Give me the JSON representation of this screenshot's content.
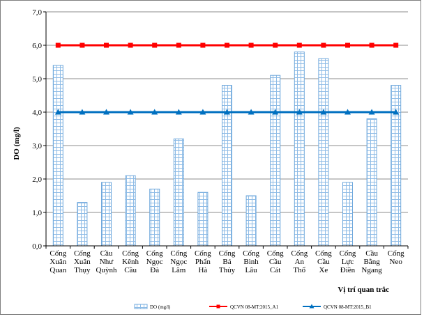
{
  "chart_data": {
    "type": "bar",
    "ylabel": "DO (mg/l)",
    "xlabel": "Vị trí quan trắc",
    "ylim": [
      0,
      7
    ],
    "yticks": [
      "0,0",
      "1,0",
      "2,0",
      "3,0",
      "4,0",
      "5,0",
      "6,0",
      "7,0"
    ],
    "grid": true,
    "legend_position": "bottom",
    "categories": [
      [
        "Cống",
        "Xuân",
        "Quan"
      ],
      [
        "Cống",
        "Xuân",
        "Thụy"
      ],
      [
        "Cầu",
        "Như",
        "Quỳnh"
      ],
      [
        "Cống",
        "Kênh",
        "Cầu"
      ],
      [
        "Cống",
        "Ngọc",
        "Đà"
      ],
      [
        "Cống",
        "Ngọc",
        "Lâm"
      ],
      [
        "Cống",
        "Phấn",
        "Hà"
      ],
      [
        "Cống",
        "Bá",
        "Thủy"
      ],
      [
        "Cống",
        "Bình",
        "Lâu"
      ],
      [
        "Cống",
        "Cầu",
        "Cát"
      ],
      [
        "Cống",
        "An",
        "Thổ"
      ],
      [
        "Cống",
        "Cầu",
        "Xe"
      ],
      [
        "Cống",
        "Lực",
        "Điền"
      ],
      [
        "Cầu",
        "Bằng",
        "Ngang"
      ],
      [
        "Cống",
        "Neo"
      ]
    ],
    "series": [
      {
        "name": "DO (mg/l)",
        "kind": "bar",
        "color": "#6fa8dc",
        "values": [
          5.4,
          1.3,
          1.9,
          2.1,
          1.7,
          3.2,
          1.6,
          4.8,
          1.5,
          5.1,
          5.8,
          5.6,
          1.9,
          3.8,
          4.8
        ]
      },
      {
        "name": "QCVN 08-MT:2015_A1",
        "kind": "line",
        "marker": "square",
        "color": "#ff0000",
        "values": [
          6,
          6,
          6,
          6,
          6,
          6,
          6,
          6,
          6,
          6,
          6,
          6,
          6,
          6,
          6
        ]
      },
      {
        "name": "QCVN 08-MT:2015_B1",
        "kind": "line",
        "marker": "triangle",
        "color": "#0070c0",
        "values": [
          4,
          4,
          4,
          4,
          4,
          4,
          4,
          4,
          4,
          4,
          4,
          4,
          4,
          4,
          4
        ]
      }
    ]
  }
}
